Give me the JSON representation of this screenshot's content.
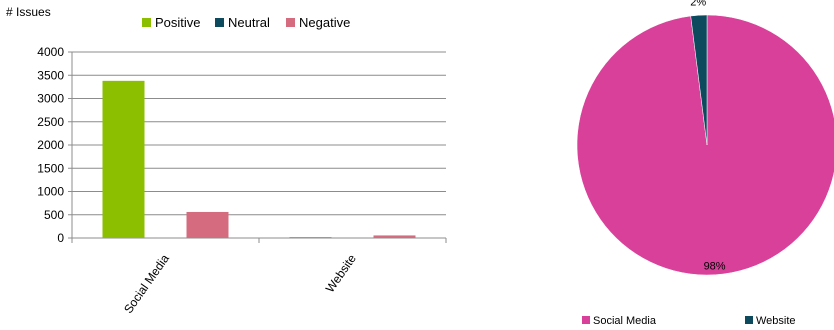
{
  "chart_data": [
    {
      "type": "bar",
      "ylabel": "# Issues",
      "categories": [
        "Social Media",
        "Website"
      ],
      "series": [
        {
          "name": "Positive",
          "values": [
            3380,
            5
          ],
          "color": "#8bbf00"
        },
        {
          "name": "Neutral",
          "values": [
            0,
            0
          ],
          "color": "#0d4a5e"
        },
        {
          "name": "Negative",
          "values": [
            560,
            55
          ],
          "color": "#d46b7e"
        }
      ],
      "ylim": [
        0,
        4000
      ],
      "yticks": [
        "0",
        "500",
        "1000",
        "1500",
        "2000",
        "2500",
        "3000",
        "3500",
        "4000"
      ],
      "grid": true,
      "legend": "top"
    },
    {
      "type": "pie",
      "slices": [
        {
          "name": "Social Media",
          "value": 98,
          "label": "98%",
          "color": "#d9409a"
        },
        {
          "name": "Website",
          "value": 2,
          "label": "2%",
          "color": "#0d4a5e"
        }
      ],
      "legend": "bottom"
    }
  ]
}
